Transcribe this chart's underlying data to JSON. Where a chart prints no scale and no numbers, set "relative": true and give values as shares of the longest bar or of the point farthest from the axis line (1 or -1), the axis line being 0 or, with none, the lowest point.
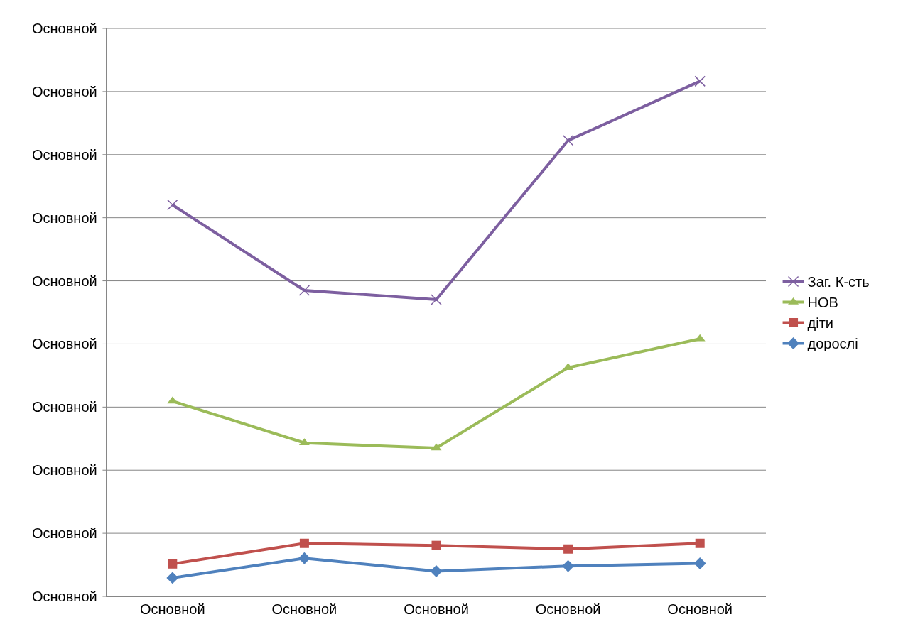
{
  "chart_data": {
    "type": "line",
    "relative": true,
    "categories": [
      "Основной",
      "Основной",
      "Основной",
      "Основной",
      "Основной"
    ],
    "series": [
      {
        "name": "Заг. К-сть",
        "color": "#7d5fa0",
        "marker": "cross",
        "values": [
          0.76,
          0.594,
          0.576,
          0.885,
          1
        ]
      },
      {
        "name": "НОВ",
        "color": "#9bbb59",
        "marker": "triangle",
        "values": [
          0.379,
          0.298,
          0.288,
          0.444,
          0.5
        ]
      },
      {
        "name": "діти",
        "color": "#c0504d",
        "marker": "square",
        "values": [
          0.063,
          0.103,
          0.099,
          0.092,
          0.103
        ]
      },
      {
        "name": "дорослі",
        "color": "#4f81bd",
        "marker": "diamond",
        "values": [
          0.036,
          0.074,
          0.049,
          0.059,
          0.064
        ]
      }
    ],
    "annotations": [
      "Основной",
      "Основной",
      "Основной",
      "Основной",
      "Основной",
      "Основной",
      "Основной",
      "Основной",
      "Основной",
      "Основной"
    ],
    "grid": "y",
    "legend": "right",
    "line_style": "solid"
  }
}
